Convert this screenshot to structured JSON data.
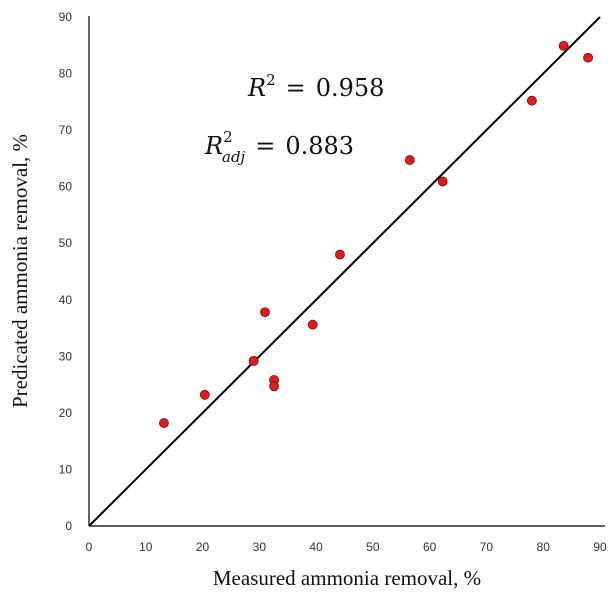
{
  "chart_data": {
    "type": "scatter",
    "title": "",
    "xlabel": "Measured ammonia removal, %",
    "ylabel": "Predicated ammonia removal, %",
    "xlim": [
      0,
      90
    ],
    "ylim": [
      0,
      90
    ],
    "xticks": [
      0,
      10,
      20,
      30,
      40,
      50,
      60,
      70,
      80,
      90
    ],
    "yticks": [
      0,
      10,
      20,
      30,
      40,
      50,
      60,
      70,
      80,
      90
    ],
    "grid": false,
    "point_color": "#e31a1c",
    "point_edge_color": "#8b0000",
    "line_color": "#000000",
    "points": [
      {
        "x": 13.2,
        "y": 18.2
      },
      {
        "x": 20.4,
        "y": 23.2
      },
      {
        "x": 29.0,
        "y": 29.2
      },
      {
        "x": 31.0,
        "y": 37.8
      },
      {
        "x": 32.6,
        "y": 25.8
      },
      {
        "x": 32.6,
        "y": 24.7
      },
      {
        "x": 39.4,
        "y": 35.6
      },
      {
        "x": 44.2,
        "y": 48.0
      },
      {
        "x": 56.5,
        "y": 64.7
      },
      {
        "x": 62.3,
        "y": 60.9
      },
      {
        "x": 78.0,
        "y": 75.2
      },
      {
        "x": 83.6,
        "y": 84.9
      },
      {
        "x": 87.9,
        "y": 82.8
      }
    ],
    "fit_line": {
      "x": [
        0,
        90
      ],
      "y": [
        0,
        90
      ]
    },
    "annotations": {
      "r2": {
        "symbol": "R",
        "sup": "2",
        "equals": "=",
        "value": "0.958"
      },
      "r2adj": {
        "symbol": "R",
        "sup": "2",
        "sub": "adj",
        "equals": "=",
        "value": "0.883"
      }
    }
  }
}
